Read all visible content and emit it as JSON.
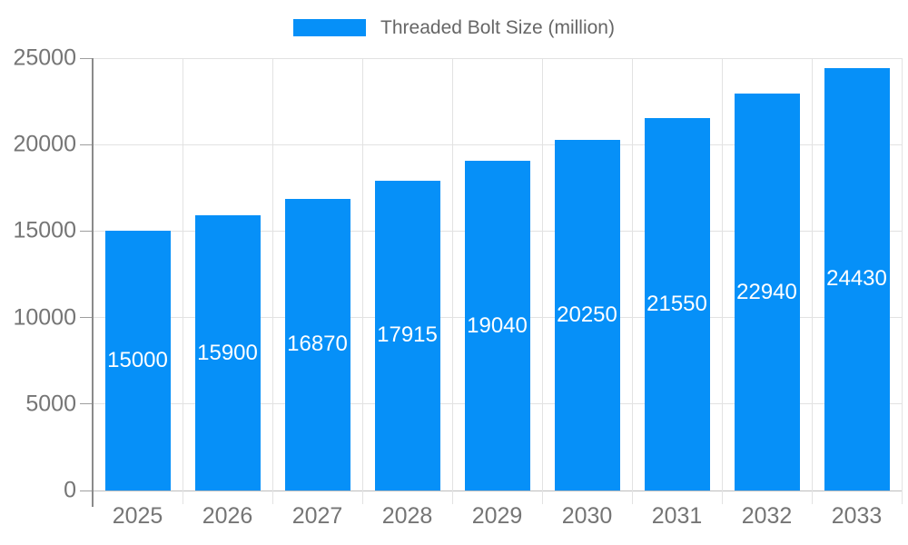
{
  "legend": {
    "label": "Threaded Bolt Size (million)"
  },
  "colors": {
    "bar": "#0690F8",
    "grid": "#E2E2E2",
    "baseline": "#BDBDBD",
    "axis": "#8A8A8A",
    "tick": "#9E9E9E",
    "axis_label": "#757575",
    "legend_text": "#666666",
    "value_label": "#FFFFFF",
    "background": "#FFFFFF"
  },
  "chart_data": {
    "type": "bar",
    "title": "Threaded Bolt Size (million)",
    "categories": [
      "2025",
      "2026",
      "2027",
      "2028",
      "2029",
      "2030",
      "2031",
      "2032",
      "2033"
    ],
    "values": [
      15000,
      15900,
      16870,
      17915,
      19040,
      20250,
      21550,
      22940,
      24430
    ],
    "series": [
      {
        "name": "Threaded Bolt Size (million)",
        "values": [
          15000,
          15900,
          16870,
          17915,
          19040,
          20250,
          21550,
          22940,
          24430
        ]
      }
    ],
    "xlabel": "",
    "ylabel": "",
    "ylim": [
      0,
      25000
    ],
    "yticks": [
      0,
      5000,
      10000,
      15000,
      20000,
      25000
    ],
    "grid": true,
    "legend_position": "top",
    "value_label_placement": "inside-center"
  }
}
